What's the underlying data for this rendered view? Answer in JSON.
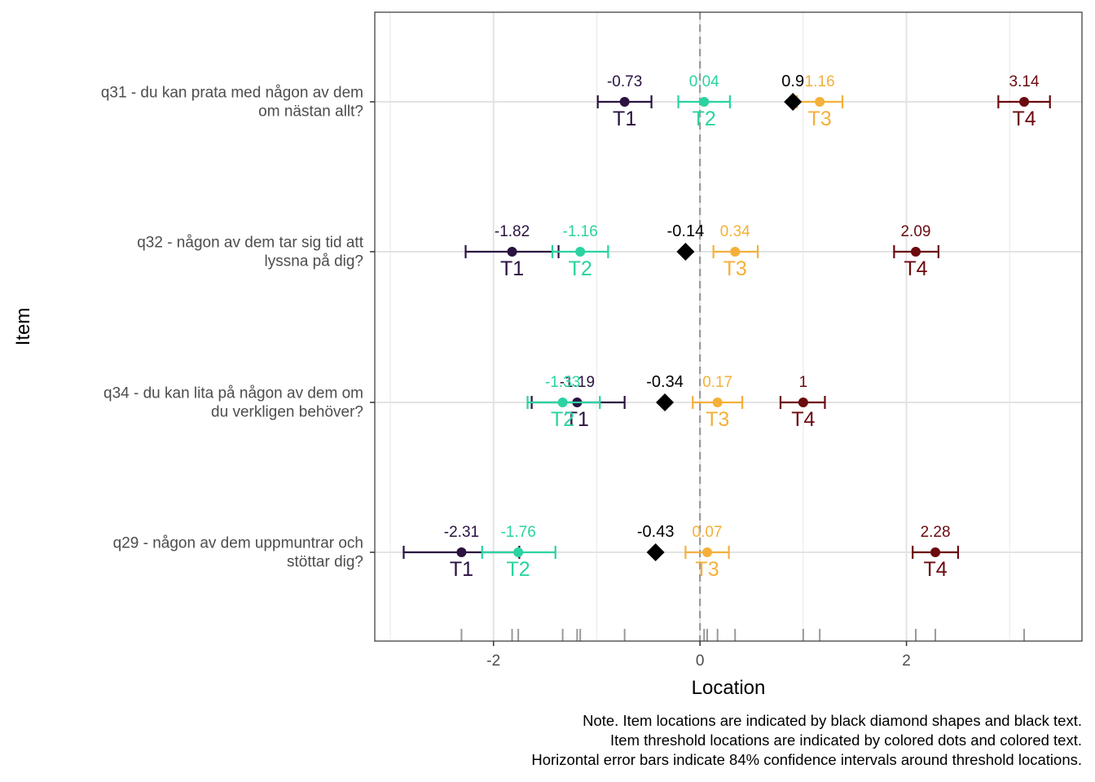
{
  "chart_data": {
    "type": "scatter",
    "xlabel": "Location",
    "ylabel": "Item",
    "xlim": [
      -3.15,
      3.7
    ],
    "xticks": [
      -2,
      0,
      2
    ],
    "xtick_labels": [
      "-2",
      "0",
      "2"
    ],
    "reference_line_x": 0,
    "grid": true,
    "colors": {
      "T1": "#2b1240",
      "T2": "#2ad3a0",
      "T3": "#f4b03a",
      "T4": "#6b0a0f",
      "item": "#000000"
    },
    "items": [
      {
        "label_lines": [
          "q31 - du kan prata med någon av dem",
          "om nästan allt?"
        ],
        "location": 0.9,
        "location_label": "0.9",
        "thresholds": [
          {
            "name": "T1",
            "value": -0.73,
            "label": "-0.73",
            "ci": [
              -0.99,
              -0.47
            ]
          },
          {
            "name": "T2",
            "value": 0.04,
            "label": "0.04",
            "ci": [
              -0.21,
              0.29
            ]
          },
          {
            "name": "T3",
            "value": 1.16,
            "label": "1.16",
            "ci": [
              0.94,
              1.38
            ]
          },
          {
            "name": "T4",
            "value": 3.14,
            "label": "3.14",
            "ci": [
              2.89,
              3.39
            ]
          }
        ]
      },
      {
        "label_lines": [
          "q32 - någon av dem tar sig tid att",
          "lyssna på dig?"
        ],
        "location": -0.14,
        "location_label": "-0.14",
        "thresholds": [
          {
            "name": "T1",
            "value": -1.82,
            "label": "-1.82",
            "ci": [
              -2.27,
              -1.37
            ]
          },
          {
            "name": "T2",
            "value": -1.16,
            "label": "-1.16",
            "ci": [
              -1.43,
              -0.89
            ]
          },
          {
            "name": "T3",
            "value": 0.34,
            "label": "0.34",
            "ci": [
              0.13,
              0.56
            ]
          },
          {
            "name": "T4",
            "value": 2.09,
            "label": "2.09",
            "ci": [
              1.88,
              2.31
            ]
          }
        ]
      },
      {
        "label_lines": [
          "q34 - du kan lita på någon av dem om",
          "du verkligen behöver?"
        ],
        "location": -0.34,
        "location_label": "-0.34",
        "thresholds": [
          {
            "name": "T1",
            "value": -1.19,
            "label": "-1.19",
            "ci": [
              -1.63,
              -0.73
            ]
          },
          {
            "name": "T2",
            "value": -1.33,
            "label": "-1.33",
            "ci": [
              -1.67,
              -0.97
            ]
          },
          {
            "name": "T3",
            "value": 0.17,
            "label": "0.17",
            "ci": [
              -0.07,
              0.41
            ]
          },
          {
            "name": "T4",
            "value": 1.0,
            "label": "1",
            "ci": [
              0.78,
              1.21
            ]
          }
        ]
      },
      {
        "label_lines": [
          "q29 - någon av dem uppmuntrar och",
          "stöttar dig?"
        ],
        "location": -0.43,
        "location_label": "-0.43",
        "thresholds": [
          {
            "name": "T1",
            "value": -2.31,
            "label": "-2.31",
            "ci": [
              -2.87,
              -1.75
            ]
          },
          {
            "name": "T2",
            "value": -1.76,
            "label": "-1.76",
            "ci": [
              -2.11,
              -1.4
            ]
          },
          {
            "name": "T3",
            "value": 0.07,
            "label": "0.07",
            "ci": [
              -0.14,
              0.28
            ]
          },
          {
            "name": "T4",
            "value": 2.28,
            "label": "2.28",
            "ci": [
              2.06,
              2.5
            ]
          }
        ]
      }
    ],
    "rug": [
      -2.31,
      -1.82,
      -1.76,
      -1.33,
      -1.19,
      -1.16,
      -0.73,
      0.04,
      0.07,
      0.17,
      0.34,
      1.0,
      1.16,
      2.09,
      2.28,
      3.14
    ]
  },
  "note_lines": [
    "Note. Item locations are indicated by black diamond shapes and black text.",
    "Item threshold locations are indicated by colored dots and colored text.",
    "Horizontal error bars indicate 84% confidence intervals around threshold locations."
  ]
}
